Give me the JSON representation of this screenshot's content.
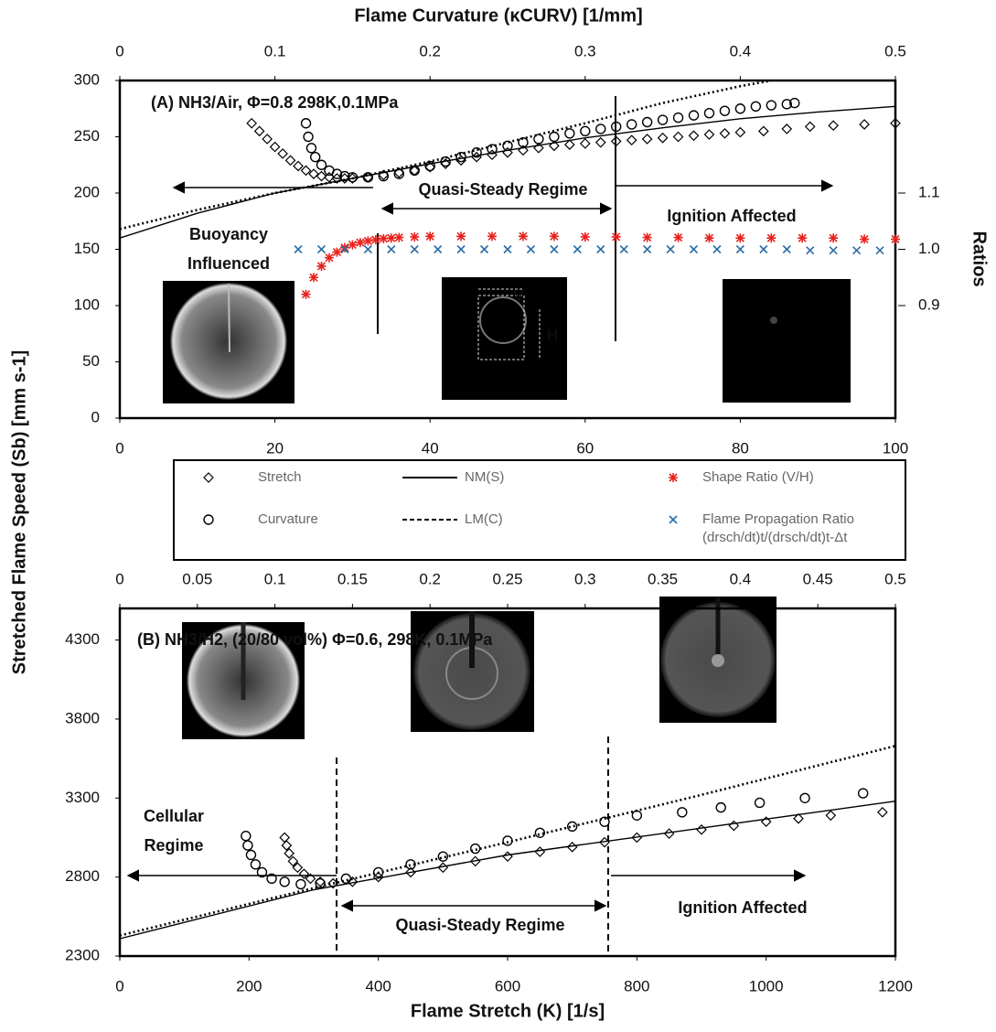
{
  "chart_data": [
    {
      "type": "scatter",
      "x2_label": "Flame Curvature (κCURV) [1/mm]",
      "y_label": "Stretched Flame Speed (Sb) [mm s-1]",
      "y2_label": "Ratios",
      "xlim": [
        0,
        100
      ],
      "xticks": [
        0,
        20,
        40,
        60,
        80,
        100
      ],
      "ylim": [
        0,
        300
      ],
      "yticks": [
        0,
        50,
        100,
        150,
        200,
        250,
        300
      ],
      "x2lim": [
        0,
        0.5
      ],
      "x2ticks": [
        0,
        0.1,
        0.2,
        0.3,
        0.4,
        0.5
      ],
      "y2lim": [
        0.7,
        1.3
      ],
      "y2ticks": [
        0.9,
        {
          "value": 1,
          "label": "1.0"
        },
        1.1
      ],
      "annotations": [
        "(A)  NH3/Air, Φ=0.8 298K,0.1MPa",
        "Quasi-Steady Regime",
        "Ignition Affected",
        "Buoyancy",
        "Influenced",
        "V",
        "H"
      ],
      "series": [
        {
          "name": "Stretch",
          "color": "#000000",
          "marker": "diamond",
          "x": [
            17,
            18,
            19,
            20,
            21,
            22,
            23,
            24,
            25,
            26,
            27,
            28,
            29,
            30,
            32,
            34,
            36,
            38,
            40,
            42,
            44,
            46,
            48,
            50,
            52,
            54,
            56,
            58,
            60,
            62,
            64,
            66,
            68,
            70,
            72,
            74,
            76,
            78,
            80,
            83,
            86,
            89,
            92,
            96,
            100
          ],
          "values": [
            262,
            255,
            248,
            241,
            235,
            229,
            224,
            220,
            217,
            215,
            214,
            213,
            213,
            213,
            214,
            216,
            218,
            220,
            223,
            226,
            229,
            232,
            234,
            236,
            238,
            240,
            242,
            243,
            244,
            245,
            246,
            247,
            248,
            249,
            250,
            251,
            252,
            253,
            254,
            255,
            257,
            259,
            260,
            261,
            262
          ]
        },
        {
          "name": "Curvature",
          "color": "#000000",
          "marker": "circle",
          "x": [
            24,
            24.3,
            24.7,
            25.2,
            26,
            27,
            28,
            29,
            30,
            32,
            34,
            36,
            38,
            40,
            42,
            44,
            46,
            48,
            50,
            52,
            54,
            56,
            58,
            60,
            62,
            64,
            66,
            68,
            70,
            72,
            74,
            76,
            78,
            80,
            82,
            84,
            86,
            87
          ],
          "values": [
            262,
            250,
            240,
            232,
            225,
            220,
            217,
            215,
            214,
            214,
            215,
            217,
            220,
            224,
            228,
            232,
            236,
            239,
            242,
            245,
            248,
            250,
            253,
            255,
            257,
            259,
            261,
            263,
            265,
            267,
            269,
            271,
            273,
            275,
            277,
            278,
            279,
            280
          ]
        },
        {
          "name": "NM(S)",
          "color": "#000000",
          "marker": "line",
          "x": [
            0,
            10,
            20,
            30,
            40,
            50,
            60,
            70,
            80,
            90,
            100
          ],
          "values": [
            160,
            182,
            200,
            213,
            226,
            238,
            249,
            258,
            266,
            272,
            277
          ]
        },
        {
          "name": "LM(C)",
          "color": "#000000",
          "marker": "dotted",
          "x": [
            0,
            10,
            20,
            30,
            40,
            50,
            60,
            70,
            80,
            84
          ],
          "values": [
            168,
            185,
            200,
            213,
            228,
            245,
            262,
            280,
            295,
            300
          ]
        },
        {
          "name": "Shape Ratio (V/H)",
          "color": "#e8221d",
          "marker": "asterisk",
          "axis": "y2",
          "x": [
            24,
            25,
            26,
            27,
            28,
            29,
            30,
            31,
            32,
            33,
            34,
            35,
            36,
            38,
            40,
            44,
            48,
            52,
            56,
            60,
            64,
            68,
            72,
            76,
            80,
            84,
            88,
            92,
            96,
            100
          ],
          "values": [
            0.92,
            0.95,
            0.97,
            0.985,
            0.995,
            1.003,
            1.008,
            1.012,
            1.015,
            1.017,
            1.019,
            1.02,
            1.021,
            1.022,
            1.023,
            1.023,
            1.023,
            1.023,
            1.023,
            1.022,
            1.022,
            1.021,
            1.021,
            1.02,
            1.02,
            1.02,
            1.02,
            1.02,
            1.018,
            1.018
          ]
        },
        {
          "name": "Flame Propagation Ratio (drsch/dt)t/(drsch/dt)t-Δt",
          "color": "#2e6da4",
          "marker": "x",
          "axis": "y2",
          "x": [
            23,
            26,
            29,
            32,
            35,
            38,
            41,
            44,
            47,
            50,
            53,
            56,
            59,
            62,
            65,
            68,
            71,
            74,
            77,
            80,
            83,
            86,
            89,
            92,
            95,
            98
          ],
          "values": [
            1,
            1,
            1,
            1,
            1,
            1,
            1,
            1,
            1,
            1,
            1,
            1,
            1,
            1,
            1,
            1,
            1,
            1,
            1,
            1,
            1,
            1,
            0.998,
            0.998,
            0.998,
            0.998
          ]
        }
      ]
    },
    {
      "type": "scatter",
      "x_label": "Flame Stretch (K) [1/s]",
      "xlim": [
        0,
        1200
      ],
      "xticks": [
        0,
        200,
        400,
        600,
        800,
        1000,
        1200
      ],
      "ylim": [
        2300,
        4500
      ],
      "yticks": [
        2300,
        2800,
        3300,
        3800,
        4300
      ],
      "x2lim": [
        0,
        0.5
      ],
      "x2ticks": [
        0,
        0.05,
        0.1,
        0.15,
        0.2,
        0.25,
        0.3,
        0.35,
        0.4,
        0.45,
        0.5
      ],
      "annotations": [
        "(B)  NH3/H2, (20/80 vol%) Φ=0.6, 298K, 0.1MPa",
        "Cellular",
        "Regime",
        "Quasi-Steady Regime",
        "Ignition Affected"
      ],
      "series": [
        {
          "name": "Stretch",
          "color": "#000000",
          "marker": "diamond",
          "x": [
            255,
            258,
            262,
            268,
            275,
            285,
            295,
            310,
            330,
            360,
            400,
            450,
            500,
            550,
            600,
            650,
            700,
            750,
            800,
            850,
            900,
            950,
            1000,
            1050,
            1100,
            1180
          ],
          "values": [
            3050,
            3000,
            2950,
            2900,
            2860,
            2820,
            2790,
            2770,
            2760,
            2770,
            2800,
            2830,
            2860,
            2900,
            2930,
            2960,
            2990,
            3020,
            3050,
            3075,
            3100,
            3125,
            3150,
            3170,
            3190,
            3210
          ]
        },
        {
          "name": "Curvature",
          "color": "#000000",
          "marker": "circle",
          "x": [
            195,
            198,
            203,
            210,
            220,
            235,
            255,
            280,
            310,
            350,
            400,
            450,
            500,
            550,
            600,
            650,
            700,
            750,
            800,
            870,
            930,
            990,
            1060,
            1150
          ],
          "values": [
            3060,
            3000,
            2940,
            2880,
            2830,
            2790,
            2770,
            2755,
            2760,
            2790,
            2830,
            2880,
            2930,
            2980,
            3030,
            3080,
            3120,
            3150,
            3190,
            3210,
            3240,
            3270,
            3300,
            3330
          ]
        },
        {
          "name": "NM(S)",
          "color": "#000000",
          "marker": "line",
          "x": [
            0,
            300,
            600,
            900,
            1200
          ],
          "values": [
            2410,
            2720,
            2940,
            3110,
            3280
          ]
        },
        {
          "name": "LM(C)",
          "color": "#000000",
          "marker": "dotted",
          "x": [
            0,
            300,
            600,
            900,
            1200
          ],
          "values": [
            2430,
            2730,
            3020,
            3320,
            3630
          ]
        }
      ]
    }
  ]
}
